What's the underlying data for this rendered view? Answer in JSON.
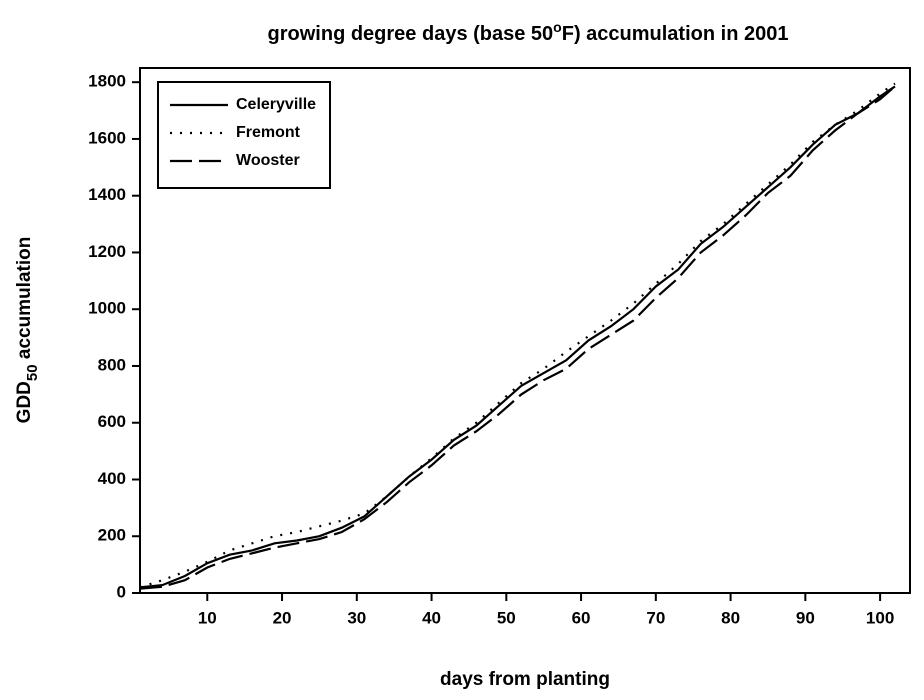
{
  "chart_data": {
    "type": "line",
    "title_parts": [
      "growing degree days (base 50",
      "o",
      "F) accumulation in 2001"
    ],
    "ylabel_parts": [
      "GDD",
      "50",
      " accumulation"
    ],
    "xlabel": "days from planting",
    "x": [
      1,
      4,
      7,
      10,
      13,
      16,
      19,
      22,
      25,
      28,
      31,
      34,
      37,
      40,
      43,
      46,
      49,
      52,
      55,
      58,
      61,
      64,
      67,
      70,
      73,
      76,
      79,
      82,
      85,
      88,
      91,
      94,
      97,
      100,
      102
    ],
    "series": [
      {
        "name": "Celeryville",
        "color": "#000000",
        "line_style": "solid",
        "values": [
          20,
          28,
          60,
          105,
          135,
          150,
          175,
          185,
          200,
          230,
          270,
          340,
          410,
          470,
          540,
          590,
          660,
          730,
          775,
          820,
          890,
          940,
          1000,
          1080,
          1140,
          1230,
          1290,
          1360,
          1430,
          1500,
          1580,
          1650,
          1690,
          1750,
          1785
        ]
      },
      {
        "name": "Fremont",
        "color": "#000000",
        "line_style": "dotted",
        "values": [
          20,
          45,
          75,
          110,
          150,
          175,
          200,
          215,
          235,
          255,
          280,
          340,
          410,
          475,
          545,
          600,
          670,
          740,
          790,
          850,
          905,
          960,
          1020,
          1090,
          1160,
          1240,
          1300,
          1370,
          1440,
          1510,
          1590,
          1650,
          1700,
          1760,
          1795
        ]
      },
      {
        "name": "Wooster",
        "color": "#000000",
        "line_style": "dashed",
        "values": [
          15,
          22,
          45,
          90,
          120,
          140,
          160,
          175,
          190,
          215,
          260,
          320,
          390,
          450,
          520,
          570,
          630,
          700,
          750,
          790,
          860,
          910,
          960,
          1040,
          1110,
          1200,
          1260,
          1330,
          1410,
          1470,
          1560,
          1630,
          1690,
          1740,
          1785
        ]
      }
    ],
    "xlim": [
      1,
      104
    ],
    "xticks": [
      10,
      20,
      30,
      40,
      50,
      60,
      70,
      80,
      90,
      100
    ],
    "ylim": [
      0,
      1850
    ],
    "yticks": [
      0,
      200,
      400,
      600,
      800,
      1000,
      1200,
      1400,
      1600,
      1800
    ],
    "legend": "upper-left",
    "grid": false
  }
}
